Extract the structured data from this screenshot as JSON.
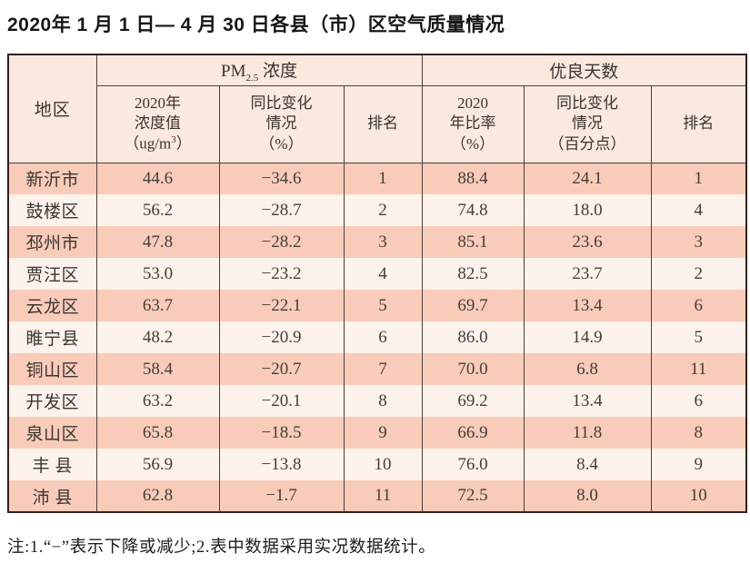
{
  "page": {
    "title": "2020年 1 月 1 日— 4 月 30 日各县（市）区空气质量情况",
    "note": "注:1.“−”表示下降或减少;2.表中数据采用实况数据统计。"
  },
  "table": {
    "region_header": "地区",
    "group_headers": {
      "pm_prefix": "PM",
      "pm_sub": "2.5",
      "pm_suffix": " 浓度",
      "days": "优良天数"
    },
    "sub_headers": {
      "pm_value_l1": "2020年",
      "pm_value_l2": "浓度值",
      "pm_value_l3a": "（ug/m",
      "pm_value_l3sup": "3",
      "pm_value_l3b": "）",
      "pm_change": "同比变化\n情况\n（%）",
      "pm_rank": "排名",
      "days_rate": "2020\n年比率\n（%）",
      "days_change": "同比变化\n情况\n（百分点）",
      "days_rank": "排名"
    },
    "rows": [
      {
        "region": "新沂市",
        "pm_value": "44.6",
        "pm_change": "−34.6",
        "pm_rank": "1",
        "days_rate": "88.4",
        "days_change": "24.1",
        "days_rank": "1"
      },
      {
        "region": "鼓楼区",
        "pm_value": "56.2",
        "pm_change": "−28.7",
        "pm_rank": "2",
        "days_rate": "74.8",
        "days_change": "18.0",
        "days_rank": "4"
      },
      {
        "region": "邳州市",
        "pm_value": "47.8",
        "pm_change": "−28.2",
        "pm_rank": "3",
        "days_rate": "85.1",
        "days_change": "23.6",
        "days_rank": "3"
      },
      {
        "region": "贾汪区",
        "pm_value": "53.0",
        "pm_change": "−23.2",
        "pm_rank": "4",
        "days_rate": "82.5",
        "days_change": "23.7",
        "days_rank": "2"
      },
      {
        "region": "云龙区",
        "pm_value": "63.7",
        "pm_change": "−22.1",
        "pm_rank": "5",
        "days_rate": "69.7",
        "days_change": "13.4",
        "days_rank": "6"
      },
      {
        "region": "睢宁县",
        "pm_value": "48.2",
        "pm_change": "−20.9",
        "pm_rank": "6",
        "days_rate": "86.0",
        "days_change": "14.9",
        "days_rank": "5"
      },
      {
        "region": "铜山区",
        "pm_value": "58.4",
        "pm_change": "−20.7",
        "pm_rank": "7",
        "days_rate": "70.0",
        "days_change": "6.8",
        "days_rank": "11"
      },
      {
        "region": "开发区",
        "pm_value": "63.2",
        "pm_change": "−20.1",
        "pm_rank": "8",
        "days_rate": "69.2",
        "days_change": "13.4",
        "days_rank": "6"
      },
      {
        "region": "泉山区",
        "pm_value": "65.8",
        "pm_change": "−18.5",
        "pm_rank": "9",
        "days_rate": "66.9",
        "days_change": "11.8",
        "days_rank": "8"
      },
      {
        "region": "丰 县",
        "pm_value": "56.9",
        "pm_change": "−13.8",
        "pm_rank": "10",
        "days_rate": "76.0",
        "days_change": "8.4",
        "days_rank": "9"
      },
      {
        "region": "沛 县",
        "pm_value": "62.8",
        "pm_change": "−1.7",
        "pm_rank": "11",
        "days_rate": "72.5",
        "days_change": "8.0",
        "days_rank": "10"
      }
    ]
  },
  "colors": {
    "header_bg": "#fbe9df",
    "row_odd_bg": "#f8ccb9",
    "row_even_bg": "#fdf2ec",
    "border_outer": "#31211c",
    "border_inner": "#4c3e37",
    "text": "#3e3733"
  },
  "chart_data": {
    "type": "table",
    "title": "2020年1月1日—4月30日各县（市）区空气质量情况",
    "column_groups": [
      "地区",
      "PM2.5浓度",
      "优良天数"
    ],
    "columns": [
      "地区",
      "PM2.5浓度 2020年浓度值（ug/m3）",
      "PM2.5浓度 同比变化情况（%）",
      "PM2.5浓度 排名",
      "优良天数 2020年比率（%）",
      "优良天数 同比变化情况（百分点）",
      "优良天数 排名"
    ],
    "rows": [
      [
        "新沂市",
        44.6,
        -34.6,
        1,
        88.4,
        24.1,
        1
      ],
      [
        "鼓楼区",
        56.2,
        -28.7,
        2,
        74.8,
        18.0,
        4
      ],
      [
        "邳州市",
        47.8,
        -28.2,
        3,
        85.1,
        23.6,
        3
      ],
      [
        "贾汪区",
        53.0,
        -23.2,
        4,
        82.5,
        23.7,
        2
      ],
      [
        "云龙区",
        63.7,
        -22.1,
        5,
        69.7,
        13.4,
        6
      ],
      [
        "睢宁县",
        48.2,
        -20.9,
        6,
        86.0,
        14.9,
        5
      ],
      [
        "铜山区",
        58.4,
        -20.7,
        7,
        70.0,
        6.8,
        11
      ],
      [
        "开发区",
        63.2,
        -20.1,
        8,
        69.2,
        13.4,
        6
      ],
      [
        "泉山区",
        65.8,
        -18.5,
        9,
        66.9,
        11.8,
        8
      ],
      [
        "丰县",
        56.9,
        -13.8,
        10,
        76.0,
        8.4,
        9
      ],
      [
        "沛县",
        62.8,
        -1.7,
        11,
        72.5,
        8.0,
        10
      ]
    ],
    "note": "注:1.“−”表示下降或减少;2.表中数据采用实况数据统计。"
  }
}
